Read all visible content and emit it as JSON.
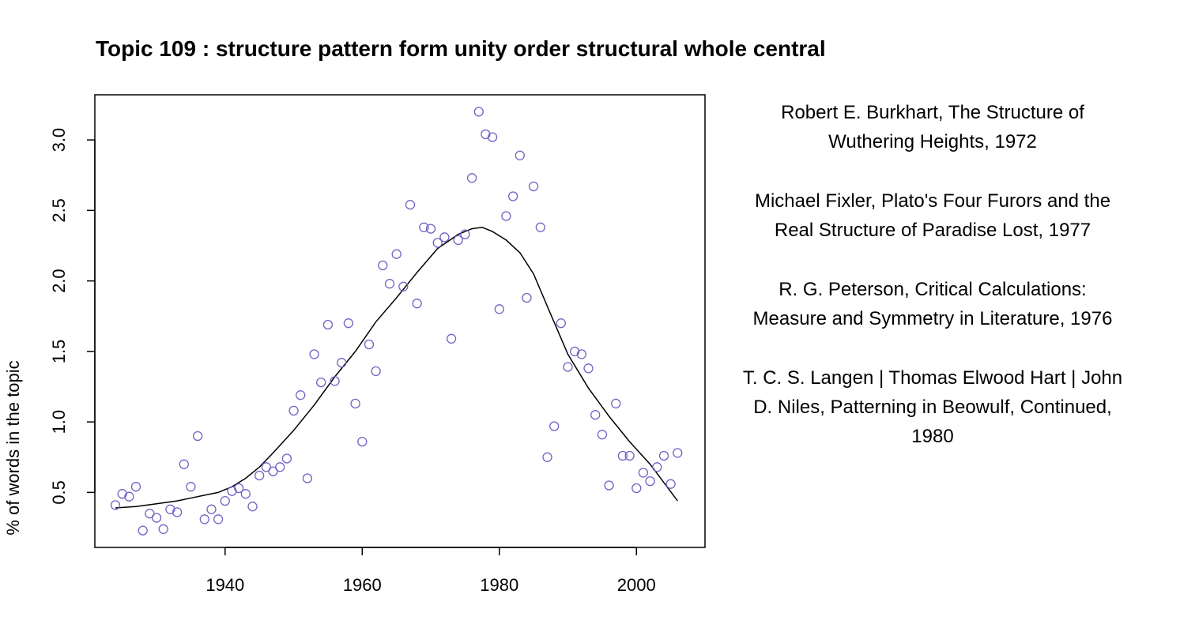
{
  "chart_data": {
    "type": "scatter",
    "title": "Topic 109 : structure pattern form unity order structural whole central",
    "xlabel": "",
    "ylabel": "% of words in the topic",
    "xlim": [
      1921,
      2010
    ],
    "ylim": [
      0.11,
      3.32
    ],
    "xticks": [
      1940,
      1960,
      1980,
      2000
    ],
    "yticks": [
      0.5,
      1.0,
      1.5,
      2.0,
      2.5,
      3.0
    ],
    "ytick_labels": [
      "0.5",
      "1.0",
      "1.5",
      "2.0",
      "2.5",
      "3.0"
    ],
    "point_color": "#6f63c4",
    "line_color": "#000000",
    "grid": false,
    "legend": "none",
    "series": [
      {
        "kind": "points",
        "x": [
          1924,
          1925,
          1926,
          1927,
          1928,
          1929,
          1930,
          1931,
          1932,
          1933,
          1934,
          1935,
          1936,
          1937,
          1938,
          1939,
          1940,
          1941,
          1942,
          1943,
          1944,
          1945,
          1946,
          1947,
          1948,
          1949,
          1950,
          1951,
          1952,
          1953,
          1954,
          1955,
          1956,
          1957,
          1958,
          1959,
          1960,
          1961,
          1962,
          1963,
          1964,
          1965,
          1966,
          1967,
          1968,
          1969,
          1970,
          1971,
          1972,
          1973,
          1974,
          1975,
          1976,
          1977,
          1978,
          1979,
          1980,
          1981,
          1982,
          1983,
          1984,
          1985,
          1986,
          1987,
          1988,
          1989,
          1990,
          1991,
          1992,
          1993,
          1994,
          1995,
          1996,
          1997,
          1998,
          1999,
          2000,
          2001,
          2002,
          2003,
          2004,
          2005,
          2006
        ],
        "y": [
          0.41,
          0.49,
          0.47,
          0.54,
          0.23,
          0.35,
          0.32,
          0.24,
          0.38,
          0.36,
          0.7,
          0.54,
          0.9,
          0.31,
          0.38,
          0.31,
          0.44,
          0.51,
          0.53,
          0.49,
          0.4,
          0.62,
          0.68,
          0.65,
          0.68,
          0.74,
          1.08,
          1.19,
          0.6,
          1.48,
          1.28,
          1.69,
          1.29,
          1.42,
          1.7,
          1.13,
          0.86,
          1.55,
          1.36,
          2.11,
          1.98,
          2.19,
          1.96,
          2.54,
          1.84,
          2.38,
          2.37,
          2.27,
          2.31,
          1.59,
          2.29,
          2.33,
          2.73,
          3.2,
          3.04,
          3.02,
          1.8,
          2.46,
          2.6,
          2.89,
          1.88,
          2.67,
          2.38,
          0.75,
          0.97,
          1.7,
          1.39,
          1.5,
          1.48,
          1.38,
          1.05,
          0.91,
          0.55,
          1.13,
          0.76,
          0.76,
          0.53,
          0.64,
          0.58,
          0.68,
          0.76,
          0.56,
          0.78
        ]
      },
      {
        "kind": "smooth",
        "x": [
          1924,
          1927,
          1930,
          1933,
          1936,
          1939,
          1941,
          1943,
          1945,
          1947,
          1950,
          1953,
          1956,
          1959,
          1962,
          1965,
          1968,
          1971,
          1974,
          1976,
          1977.5,
          1979,
          1981,
          1983,
          1985,
          1987,
          1990,
          1993,
          1996,
          1999,
          2002,
          2004,
          2006
        ],
        "y": [
          0.39,
          0.4,
          0.42,
          0.44,
          0.47,
          0.5,
          0.54,
          0.6,
          0.68,
          0.78,
          0.94,
          1.12,
          1.32,
          1.5,
          1.71,
          1.88,
          2.06,
          2.23,
          2.33,
          2.37,
          2.38,
          2.35,
          2.29,
          2.2,
          2.05,
          1.82,
          1.48,
          1.24,
          1.04,
          0.86,
          0.7,
          0.57,
          0.44
        ]
      }
    ]
  },
  "notes": [
    {
      "line1": "Robert E. Burkhart, The Structure of",
      "line2": "Wuthering Heights, 1972",
      "line3": ""
    },
    {
      "line1": "Michael Fixler, Plato's Four Furors and the",
      "line2": "Real Structure of Paradise Lost, 1977",
      "line3": ""
    },
    {
      "line1": "R. G. Peterson, Critical Calculations:",
      "line2": "Measure and Symmetry in Literature, 1976",
      "line3": ""
    },
    {
      "line1": "T. C. S. Langen | Thomas Elwood Hart | John",
      "line2": "D. Niles, Patterning in Beowulf, Continued,",
      "line3": "1980"
    }
  ]
}
